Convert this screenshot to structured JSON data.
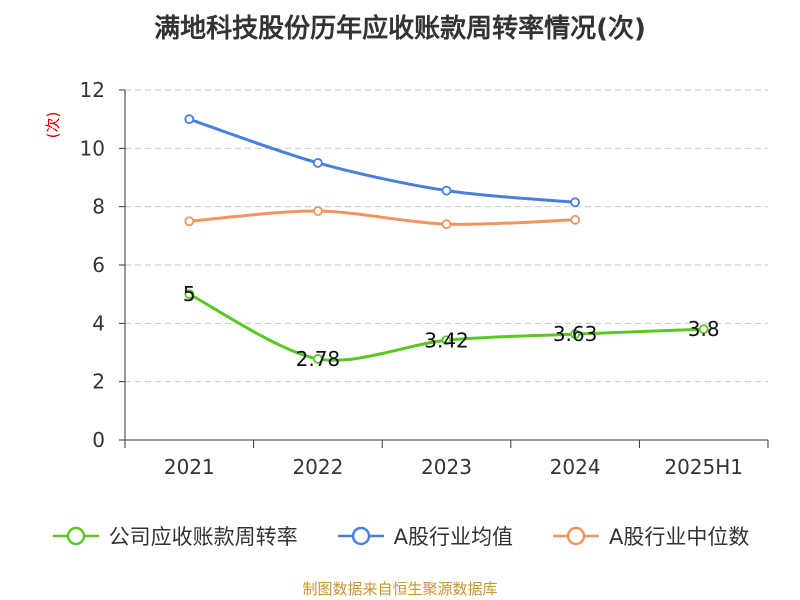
{
  "title": "满地科技股份历年应收账款周转率情况(次)",
  "source": "制图数据来自恒生聚源数据库",
  "colors": {
    "company": "#5ac725",
    "industry_avg": "#4a7fde",
    "industry_median": "#f2945e",
    "ylabel": "#cc0000",
    "source": "#c8962d"
  },
  "chart_data": {
    "type": "line",
    "title": "满地科技股份历年应收账款周转率情况(次)",
    "xlabel": "",
    "ylabel": "(次)",
    "categories": [
      "2021",
      "2022",
      "2023",
      "2024",
      "2025H1"
    ],
    "ylim": [
      0,
      12
    ],
    "yticks": [
      0,
      2,
      4,
      6,
      8,
      10,
      12
    ],
    "grid": true,
    "legend": "bottom",
    "series": [
      {
        "name": "公司应收账款周转率",
        "values": [
          5,
          2.78,
          3.42,
          3.63,
          3.8
        ],
        "labels": [
          "5",
          "2.78",
          "3.42",
          "3.63",
          "3.8"
        ],
        "color": "#5ac725"
      },
      {
        "name": "A股行业均值",
        "values": [
          11.0,
          9.5,
          8.55,
          8.15,
          null
        ],
        "color": "#4a7fde"
      },
      {
        "name": "A股行业中位数",
        "values": [
          7.5,
          7.85,
          7.4,
          7.55,
          null
        ],
        "color": "#f2945e"
      }
    ]
  }
}
